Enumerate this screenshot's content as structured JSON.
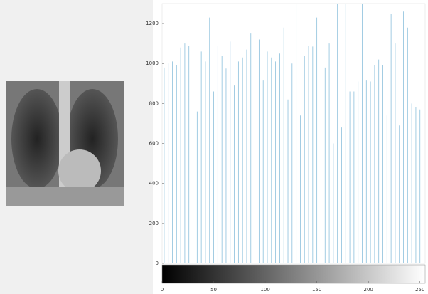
{
  "chart_data": {
    "type": "stem",
    "x": [
      2,
      6,
      10,
      14,
      18,
      22,
      26,
      30,
      34,
      38,
      42,
      46,
      50,
      54,
      58,
      62,
      66,
      70,
      74,
      78,
      82,
      86,
      90,
      94,
      98,
      102,
      106,
      110,
      114,
      118,
      122,
      126,
      130,
      134,
      138,
      142,
      146,
      150,
      154,
      158,
      162,
      166,
      170,
      174,
      178,
      182,
      186,
      190,
      194,
      198,
      202,
      206,
      210,
      214,
      218,
      222,
      226,
      230,
      234,
      238,
      242,
      246,
      250
    ],
    "values": [
      980,
      1000,
      1010,
      990,
      1080,
      1100,
      1090,
      1070,
      760,
      1060,
      1010,
      1230,
      860,
      1090,
      1040,
      975,
      1110,
      890,
      1010,
      1030,
      1070,
      1150,
      830,
      1120,
      915,
      1060,
      1030,
      1010,
      1050,
      1180,
      820,
      1000,
      1300,
      740,
      1040,
      1090,
      1085,
      1230,
      940,
      980,
      1100,
      600,
      1300,
      680,
      1300,
      860,
      860,
      910,
      1300,
      915,
      910,
      990,
      1020,
      990,
      740,
      1250,
      1100,
      690,
      1260,
      1180,
      800,
      780,
      770
    ],
    "color": "#8cc0dc",
    "xlim": [
      0,
      255
    ],
    "ylim": [
      0,
      1300
    ],
    "xticks": [
      0,
      50,
      100,
      150,
      200,
      250
    ],
    "yticks": [
      0,
      200,
      400,
      600,
      800,
      1000,
      1200
    ]
  }
}
